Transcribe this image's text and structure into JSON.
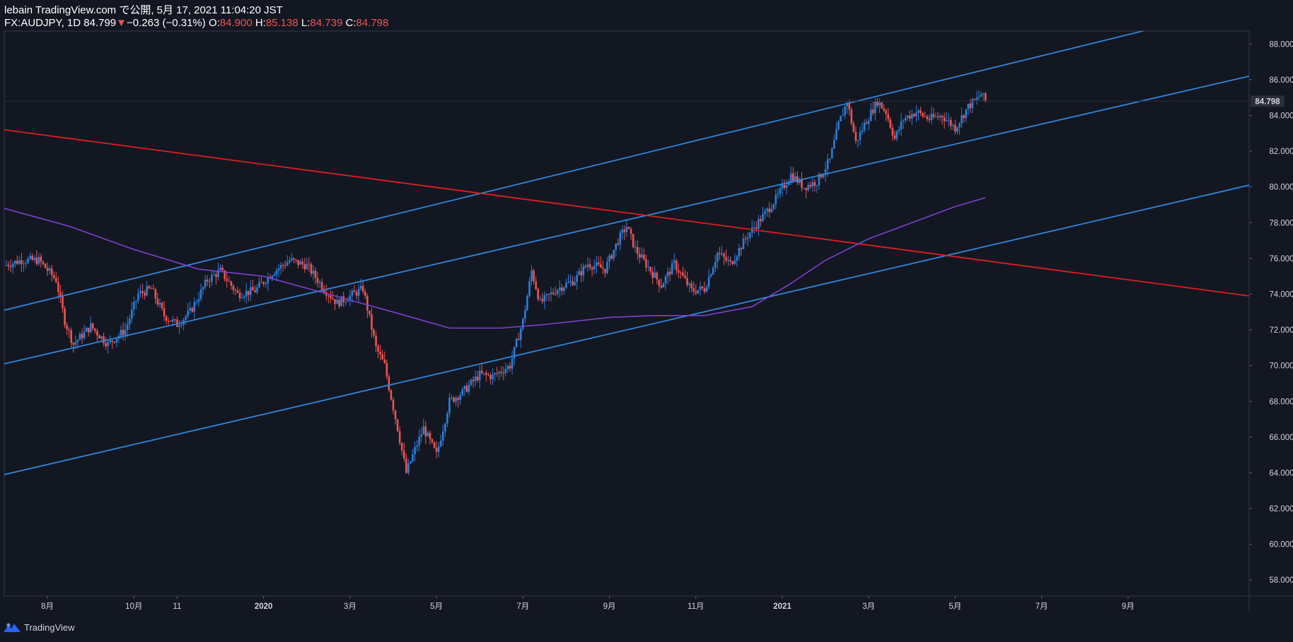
{
  "header": {
    "publisher": "lebain TradingView.com で公開, 5月 17, 2021 11:04:20 JST",
    "symbol": "FX:AUDJPY, 1D",
    "last": "84.799",
    "change_arrow": "▼",
    "change": "−0.263 (−0.31%)",
    "o_label": "O:",
    "o_value": "84.900",
    "h_label": "H:",
    "h_value": "85.138",
    "l_label": "L:",
    "l_value": "84.739",
    "c_label": "C:",
    "c_value": "84.798"
  },
  "footer": {
    "brand": "TradingView"
  },
  "colors": {
    "background": "#131722",
    "up": "#2a7fdb",
    "down": "#ef5350",
    "channel": "#2e86de",
    "trend": "#e01e1e",
    "ma": "#7e3fd1"
  },
  "chart_data": {
    "type": "candlestick",
    "title": "",
    "y_axis": {
      "ticks": [
        "58.000",
        "60.000",
        "62.000",
        "64.000",
        "66.000",
        "68.000",
        "70.000",
        "72.000",
        "74.000",
        "76.000",
        "78.000",
        "80.000",
        "82.000",
        "84.000",
        "86.000",
        "88.000"
      ],
      "tick_values": [
        58,
        60,
        62,
        64,
        66,
        68,
        70,
        72,
        74,
        76,
        78,
        80,
        82,
        84,
        86,
        88
      ],
      "range": [
        57.1,
        89.0
      ],
      "last_price_label": "84.798",
      "last_price": 84.798
    },
    "x_axis": {
      "ticks": [
        "8月",
        "10月",
        "11",
        "2020",
        "3月",
        "5月",
        "7月",
        "9月",
        "11月",
        "2021",
        "3月",
        "5月",
        "7月",
        "9月"
      ],
      "tick_months": [
        1,
        3,
        4,
        6,
        8,
        10,
        12,
        14,
        16,
        18,
        20,
        22,
        24,
        26
      ],
      "range_months": [
        0,
        28.8
      ]
    },
    "price_path": [
      [
        0,
        75.6
      ],
      [
        0.4,
        75.9
      ],
      [
        0.8,
        75.9
      ],
      [
        1.2,
        74.8
      ],
      [
        1.4,
        72.5
      ],
      [
        1.6,
        71.2
      ],
      [
        2.0,
        72.2
      ],
      [
        2.4,
        71.2
      ],
      [
        2.8,
        72.0
      ],
      [
        3.1,
        74.0
      ],
      [
        3.4,
        74.3
      ],
      [
        3.7,
        72.8
      ],
      [
        4.0,
        72.3
      ],
      [
        4.3,
        73.0
      ],
      [
        4.7,
        74.8
      ],
      [
        5.0,
        75.3
      ],
      [
        5.4,
        74.0
      ],
      [
        5.8,
        74.2
      ],
      [
        6.2,
        75.2
      ],
      [
        6.6,
        75.9
      ],
      [
        7.0,
        75.6
      ],
      [
        7.4,
        74.3
      ],
      [
        7.7,
        73.5
      ],
      [
        8.0,
        73.9
      ],
      [
        8.3,
        74.3
      ],
      [
        8.6,
        71.0
      ],
      [
        8.8,
        70.0
      ],
      [
        8.9,
        68.8
      ],
      [
        9.1,
        66.5
      ],
      [
        9.3,
        64.0
      ],
      [
        9.5,
        65.3
      ],
      [
        9.7,
        66.5
      ],
      [
        10.0,
        65.0
      ],
      [
        10.3,
        68.0
      ],
      [
        10.6,
        68.5
      ],
      [
        11.0,
        69.5
      ],
      [
        11.3,
        69.4
      ],
      [
        11.7,
        70.0
      ],
      [
        12.0,
        72.5
      ],
      [
        12.2,
        75.3
      ],
      [
        12.4,
        73.5
      ],
      [
        12.8,
        74.3
      ],
      [
        13.2,
        74.8
      ],
      [
        13.5,
        75.7
      ],
      [
        13.9,
        75.4
      ],
      [
        14.2,
        77.0
      ],
      [
        14.4,
        77.8
      ],
      [
        14.6,
        76.5
      ],
      [
        14.9,
        75.5
      ],
      [
        15.2,
        74.5
      ],
      [
        15.5,
        75.7
      ],
      [
        15.9,
        74.2
      ],
      [
        16.2,
        74.3
      ],
      [
        16.5,
        76.3
      ],
      [
        16.8,
        75.7
      ],
      [
        17.2,
        77.3
      ],
      [
        17.6,
        78.5
      ],
      [
        17.9,
        79.5
      ],
      [
        18.2,
        80.7
      ],
      [
        18.5,
        80.0
      ],
      [
        18.8,
        80.3
      ],
      [
        19.1,
        81.5
      ],
      [
        19.3,
        83.5
      ],
      [
        19.5,
        84.8
      ],
      [
        19.7,
        82.5
      ],
      [
        19.9,
        83.5
      ],
      [
        20.2,
        84.8
      ],
      [
        20.4,
        84.2
      ],
      [
        20.6,
        82.7
      ],
      [
        20.8,
        83.8
      ],
      [
        21.1,
        84.2
      ],
      [
        21.4,
        83.8
      ],
      [
        21.7,
        84.0
      ],
      [
        22.0,
        83.3
      ],
      [
        22.3,
        84.5
      ],
      [
        22.5,
        84.9
      ],
      [
        22.6,
        85.2
      ],
      [
        22.7,
        84.8
      ]
    ],
    "overlays": [
      {
        "kind": "channel-line",
        "x1": 0,
        "y1": 73.1,
        "x2": 26.8,
        "y2": 89.0
      },
      {
        "kind": "channel-line",
        "x1": 0,
        "y1": 70.1,
        "x2": 28.8,
        "y2": 86.2
      },
      {
        "kind": "channel-line",
        "x1": 0,
        "y1": 63.9,
        "x2": 28.8,
        "y2": 80.1
      },
      {
        "kind": "trend-line",
        "x1": 0,
        "y1": 83.2,
        "x2": 28.8,
        "y2": 73.9
      },
      {
        "kind": "moving-average",
        "points": [
          [
            0,
            78.8
          ],
          [
            1.5,
            77.8
          ],
          [
            3.0,
            76.5
          ],
          [
            4.5,
            75.4
          ],
          [
            6.0,
            75.0
          ],
          [
            7.5,
            74.0
          ],
          [
            9.0,
            73.0
          ],
          [
            10.3,
            72.1
          ],
          [
            11.5,
            72.1
          ],
          [
            12.5,
            72.3
          ],
          [
            14.0,
            72.7
          ],
          [
            15.0,
            72.8
          ],
          [
            16.2,
            72.8
          ],
          [
            17.3,
            73.3
          ],
          [
            18.2,
            74.6
          ],
          [
            19.0,
            75.9
          ],
          [
            20.0,
            77.1
          ],
          [
            21.0,
            78.0
          ],
          [
            22.0,
            78.9
          ],
          [
            22.7,
            79.4
          ]
        ]
      }
    ]
  }
}
